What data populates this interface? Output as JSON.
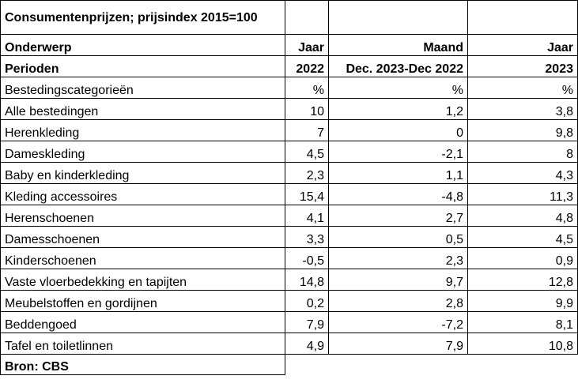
{
  "title": "Consumentenprijzen; prijsindex 2015=100",
  "header": {
    "onderwerp_label": "Onderwerp",
    "col1": "Jaar",
    "col2": "Maand",
    "col3": "Jaar",
    "perioden_label": "Perioden",
    "period1": "2022",
    "period2": "Dec. 2023-Dec 2022",
    "period3": "2023"
  },
  "unit_row": {
    "label": "Bestedingscategorieën",
    "u1": "%",
    "u2": "%",
    "u3": "%"
  },
  "rows": [
    {
      "label": "Alle bestedingen",
      "v1": "10",
      "v2": "1,2",
      "v3": "3,8"
    },
    {
      "label": "Herenkleding",
      "v1": "7",
      "v2": "0",
      "v3": "9,8"
    },
    {
      "label": "Dameskleding",
      "v1": "4,5",
      "v2": "-2,1",
      "v3": "8"
    },
    {
      "label": "Baby en kinderkleding",
      "v1": "2,3",
      "v2": "1,1",
      "v3": "4,3"
    },
    {
      "label": "Kleding accessoires",
      "v1": "15,4",
      "v2": "-4,8",
      "v3": "11,3"
    },
    {
      "label": "Herenschoenen",
      "v1": "4,1",
      "v2": "2,7",
      "v3": "4,8"
    },
    {
      "label": "Damesschoenen",
      "v1": "3,3",
      "v2": "0,5",
      "v3": "4,5"
    },
    {
      "label": "Kinderschoenen",
      "v1": "-0,5",
      "v2": "2,3",
      "v3": "0,9"
    },
    {
      "label": "Vaste vloerbedekking en tapijten",
      "v1": "14,8",
      "v2": "9,7",
      "v3": "12,8"
    },
    {
      "label": "Meubelstoffen en gordijnen",
      "v1": "0,2",
      "v2": "2,8",
      "v3": "9,9"
    },
    {
      "label": "Beddengoed",
      "v1": "7,9",
      "v2": "-7,2",
      "v3": "8,1"
    },
    {
      "label": "Tafel en toiletlinnen",
      "v1": "4,9",
      "v2": "7,9",
      "v3": "10,8"
    }
  ],
  "source": "Bron: CBS"
}
